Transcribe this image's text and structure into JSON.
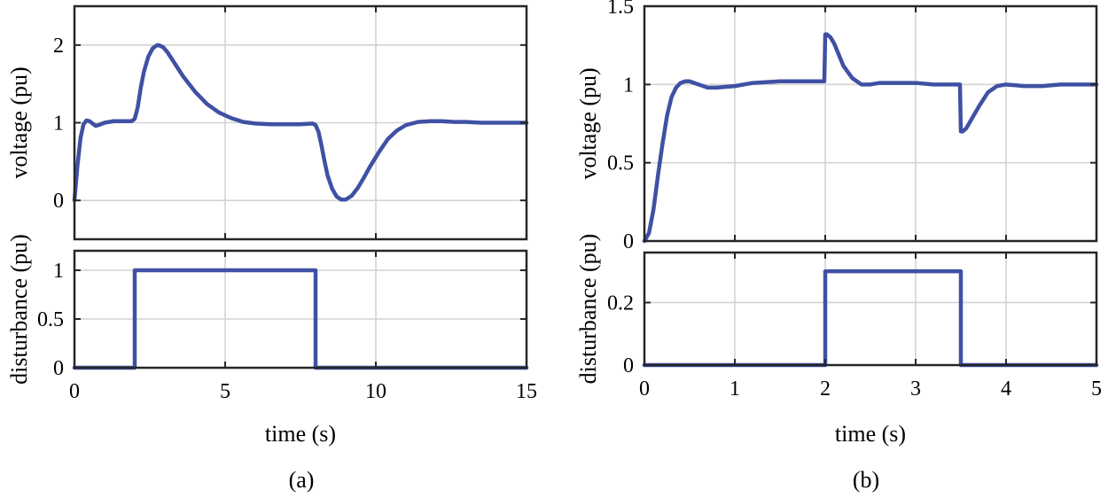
{
  "colors": {
    "series": "#3f51a3",
    "grid": "#d3d3d3",
    "frame": "#262626"
  },
  "chart_data": [
    {
      "id": "a",
      "type": "line",
      "caption": "(a)",
      "xlabel": "time (s)",
      "xlim": [
        0,
        15
      ],
      "xticks": [
        0,
        5,
        10,
        15
      ],
      "panels": [
        {
          "ylabel": "voltage (pu)",
          "ylim": [
            -0.5,
            2.5
          ],
          "yticks": [
            0,
            1,
            2
          ],
          "grid": true,
          "series": [
            {
              "x": [
                0,
                0.1,
                0.2,
                0.3,
                0.4,
                0.5,
                0.6,
                0.7,
                0.8,
                1.0,
                1.3,
                1.6,
                1.9,
                2.0,
                2.1,
                2.2,
                2.3,
                2.45,
                2.6,
                2.75,
                2.85,
                2.95,
                3.1,
                3.3,
                3.6,
                4.0,
                4.4,
                4.8,
                5.2,
                5.6,
                6.0,
                6.5,
                7.0,
                7.5,
                7.9,
                8.0,
                8.1,
                8.2,
                8.3,
                8.4,
                8.55,
                8.7,
                8.85,
                9.0,
                9.2,
                9.4,
                9.6,
                9.8,
                10.1,
                10.4,
                10.7,
                11.0,
                11.4,
                11.8,
                12.2,
                12.6,
                13.0,
                13.5,
                14.0,
                14.5,
                15.0
              ],
              "y": [
                0,
                0.45,
                0.8,
                0.98,
                1.03,
                1.02,
                0.99,
                0.96,
                0.97,
                1.0,
                1.02,
                1.02,
                1.02,
                1.05,
                1.2,
                1.45,
                1.65,
                1.85,
                1.96,
                2.0,
                1.99,
                1.97,
                1.9,
                1.78,
                1.6,
                1.4,
                1.24,
                1.13,
                1.06,
                1.01,
                0.99,
                0.98,
                0.98,
                0.98,
                0.99,
                0.97,
                0.88,
                0.7,
                0.5,
                0.32,
                0.15,
                0.05,
                0.01,
                0.01,
                0.06,
                0.16,
                0.29,
                0.43,
                0.62,
                0.79,
                0.9,
                0.97,
                1.01,
                1.02,
                1.02,
                1.01,
                1.01,
                1.0,
                1.0,
                1.0,
                1.0
              ]
            }
          ]
        },
        {
          "ylabel": "disturbance (pu)",
          "ylim": [
            0,
            1.2
          ],
          "yticks": [
            0,
            0.5,
            1
          ],
          "grid": true,
          "series": [
            {
              "x": [
                0,
                2,
                2,
                8,
                8,
                15
              ],
              "y": [
                0,
                0,
                1,
                1,
                0,
                0
              ]
            }
          ]
        }
      ]
    },
    {
      "id": "b",
      "type": "line",
      "caption": "(b)",
      "xlabel": "time (s)",
      "xlim": [
        0,
        5
      ],
      "xticks": [
        0,
        1,
        2,
        3,
        4,
        5
      ],
      "panels": [
        {
          "ylabel": "voltage (pu)",
          "ylim": [
            0,
            1.5
          ],
          "yticks": [
            0,
            0.5,
            1,
            1.5
          ],
          "grid": true,
          "series": [
            {
              "x": [
                0,
                0.05,
                0.1,
                0.15,
                0.2,
                0.25,
                0.3,
                0.35,
                0.4,
                0.45,
                0.5,
                0.55,
                0.6,
                0.7,
                0.8,
                1.0,
                1.2,
                1.5,
                1.8,
                1.99,
                2.0,
                2.02,
                2.06,
                2.1,
                2.15,
                2.2,
                2.3,
                2.4,
                2.5,
                2.6,
                2.8,
                3.0,
                3.2,
                3.49,
                3.5,
                3.52,
                3.56,
                3.6,
                3.7,
                3.8,
                3.9,
                4.0,
                4.2,
                4.4,
                4.6,
                4.8,
                5.0
              ],
              "y": [
                0,
                0.05,
                0.2,
                0.42,
                0.62,
                0.8,
                0.92,
                0.98,
                1.01,
                1.02,
                1.02,
                1.01,
                1.0,
                0.98,
                0.98,
                0.99,
                1.01,
                1.02,
                1.02,
                1.02,
                1.32,
                1.32,
                1.3,
                1.26,
                1.19,
                1.12,
                1.04,
                1.0,
                1.0,
                1.01,
                1.01,
                1.01,
                1.0,
                1.0,
                0.7,
                0.7,
                0.72,
                0.76,
                0.86,
                0.95,
                0.99,
                1.0,
                0.99,
                0.99,
                1.0,
                1.0,
                1.0
              ]
            }
          ]
        },
        {
          "ylabel": "disturbance (pu)",
          "ylim": [
            0,
            0.36
          ],
          "yticks": [
            0,
            0.2
          ],
          "grid": true,
          "series": [
            {
              "x": [
                0,
                2,
                2,
                3.5,
                3.5,
                5
              ],
              "y": [
                0,
                0,
                0.3,
                0.3,
                0,
                0
              ]
            }
          ]
        }
      ]
    }
  ]
}
